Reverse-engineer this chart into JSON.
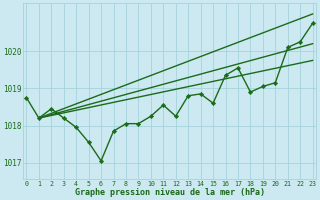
{
  "series": [
    {
      "name": "wavy_marked",
      "x": [
        0,
        1,
        2,
        3,
        4,
        5,
        6,
        7,
        8,
        9,
        10,
        11,
        12,
        13,
        14,
        15,
        16,
        17,
        18,
        19,
        20,
        21,
        22,
        23
      ],
      "y": [
        1018.75,
        1018.2,
        1018.45,
        1018.2,
        1017.95,
        1017.55,
        1017.05,
        1017.85,
        1018.05,
        1018.05,
        1018.25,
        1018.55,
        1018.25,
        1018.8,
        1018.85,
        1018.6,
        1019.35,
        1019.55,
        1018.9,
        1019.05,
        1019.15,
        1020.1,
        1020.25,
        1020.75
      ],
      "color": "#1a6b1a",
      "linewidth": 1.0,
      "marker": "D",
      "markersize": 2.2
    },
    {
      "name": "straight_top",
      "x": [
        1,
        23
      ],
      "y": [
        1018.2,
        1021.0
      ],
      "color": "#1a6b1a",
      "linewidth": 1.0,
      "marker": null,
      "markersize": 0
    },
    {
      "name": "straight_mid1",
      "x": [
        1,
        23
      ],
      "y": [
        1018.2,
        1020.2
      ],
      "color": "#1a6b1a",
      "linewidth": 1.0,
      "marker": null,
      "markersize": 0
    },
    {
      "name": "straight_mid2",
      "x": [
        1,
        23
      ],
      "y": [
        1018.2,
        1019.75
      ],
      "color": "#1a6b1a",
      "linewidth": 1.0,
      "marker": null,
      "markersize": 0
    }
  ],
  "xlim": [
    -0.3,
    23.3
  ],
  "ylim": [
    1016.55,
    1021.3
  ],
  "yticks": [
    1017,
    1018,
    1019,
    1020
  ],
  "xticks": [
    0,
    1,
    2,
    3,
    4,
    5,
    6,
    7,
    8,
    9,
    10,
    11,
    12,
    13,
    14,
    15,
    16,
    17,
    18,
    19,
    20,
    21,
    22,
    23
  ],
  "xlabel": "Graphe pression niveau de la mer (hPa)",
  "background_color": "#cce8f0",
  "grid_color": "#9ecfda",
  "line_color": "#1a6b1a",
  "tick_color": "#1a6b1a",
  "label_color": "#1a6b1a",
  "figsize": [
    3.2,
    2.0
  ],
  "dpi": 100
}
